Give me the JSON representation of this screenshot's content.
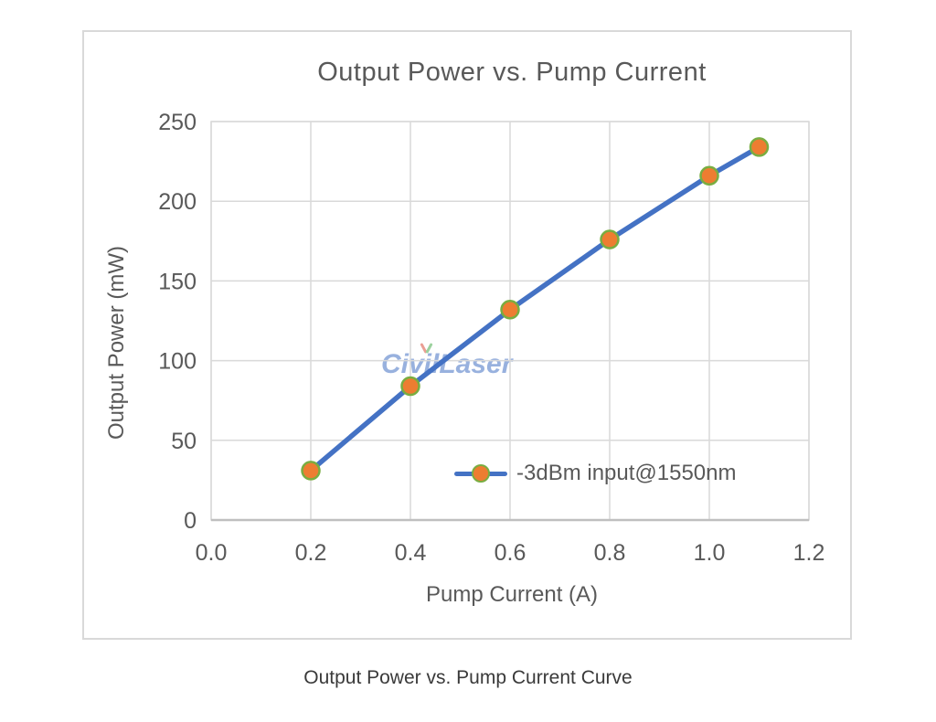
{
  "caption": "Output Power vs. Pump Current Curve",
  "watermark": {
    "text": "CivilLaser"
  },
  "chart_data": {
    "type": "line",
    "title": "Output Power vs. Pump Current",
    "xlabel": "Pump Current (A)",
    "ylabel": "Output Power (mW)",
    "x": [
      0.2,
      0.4,
      0.6,
      0.8,
      1.0,
      1.1
    ],
    "series": [
      {
        "name": "-3dBm input@1550nm",
        "values": [
          31,
          84,
          132,
          176,
          216,
          234
        ]
      }
    ],
    "xlim": [
      0.0,
      1.2
    ],
    "ylim": [
      0,
      250
    ],
    "x_ticks": [
      0.0,
      0.2,
      0.4,
      0.6,
      0.8,
      1.0,
      1.2
    ],
    "x_tick_labels": [
      "0.0",
      "0.2",
      "0.4",
      "0.6",
      "0.8",
      "1.0",
      "1.2"
    ],
    "y_ticks": [
      0,
      50,
      100,
      150,
      200,
      250
    ],
    "y_tick_labels": [
      "0",
      "50",
      "100",
      "150",
      "200",
      "250"
    ],
    "grid": true,
    "legend_position": "inside-lower-right",
    "colors": {
      "line": "#4472C4",
      "marker_fill": "#ED7D31",
      "marker_border": "#79AD41",
      "gridline": "#D9D9D9",
      "axis_line": "#BFBFBF",
      "text": "#595959",
      "caption_text": "#3A3A3A",
      "watermark": "#4472C4",
      "watermark_accent_left": "#D94F3D",
      "watermark_accent_right": "#4CAF50",
      "chart_border": "#D9D9D9",
      "background": "#FFFFFF"
    }
  }
}
